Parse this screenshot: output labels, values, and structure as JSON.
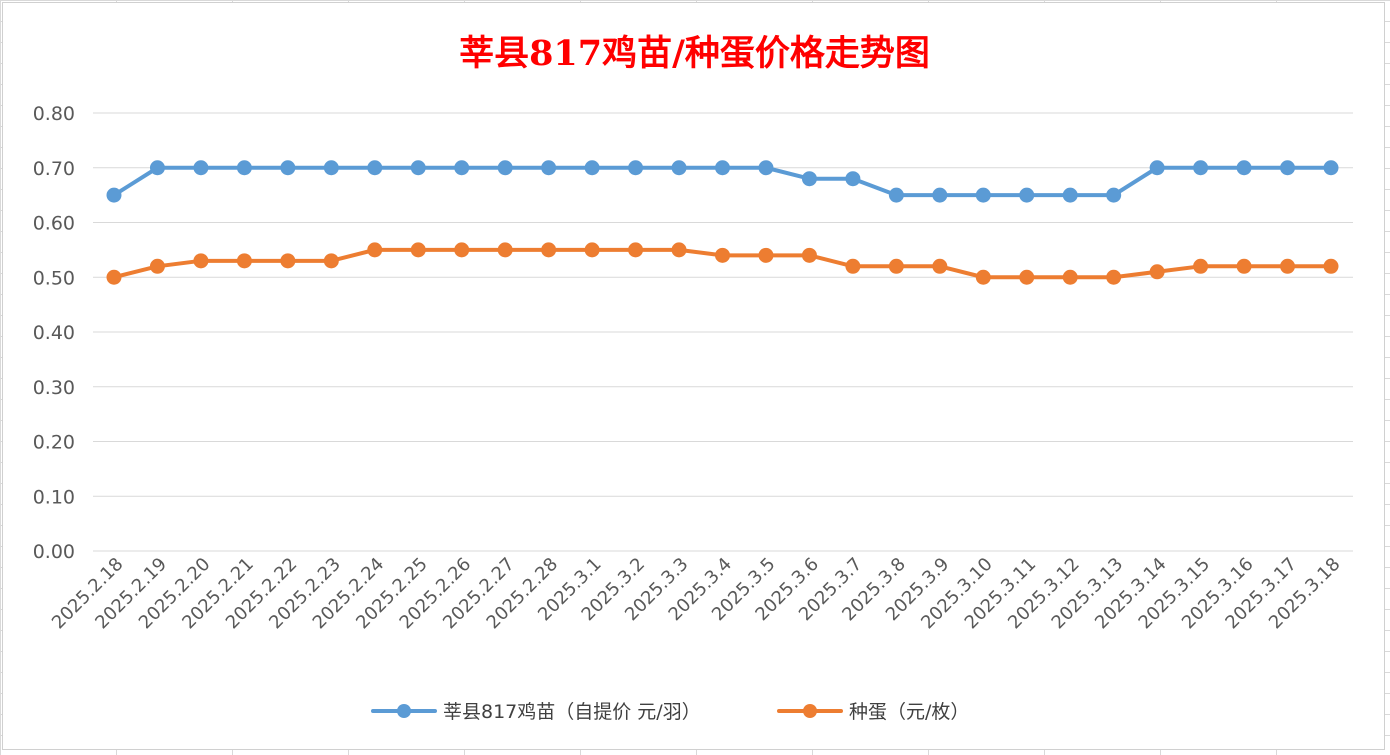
{
  "chart_data": {
    "type": "line",
    "title": "莘县817鸡苗/种蛋价格走势图",
    "xlabel": "",
    "ylabel": "",
    "ylim": [
      0,
      0.8
    ],
    "yticks": [
      "0.00",
      "0.10",
      "0.20",
      "0.30",
      "0.40",
      "0.50",
      "0.60",
      "0.70",
      "0.80"
    ],
    "grid": true,
    "legend_position": "bottom",
    "categories": [
      "2025.2.18",
      "2025.2.19",
      "2025.2.20",
      "2025.2.21",
      "2025.2.22",
      "2025.2.23",
      "2025.2.24",
      "2025.2.25",
      "2025.2.26",
      "2025.2.27",
      "2025.2.28",
      "2025.3.1",
      "2025.3.2",
      "2025.3.3",
      "2025.3.4",
      "2025.3.5",
      "2025.3.6",
      "2025.3.7",
      "2025.3.8",
      "2025.3.9",
      "2025.3.10",
      "2025.3.11",
      "2025.3.12",
      "2025.3.13",
      "2025.3.14",
      "2025.3.15",
      "2025.3.16",
      "2025.3.17",
      "2025.3.18"
    ],
    "series": [
      {
        "name": "莘县817鸡苗（自提价 元/羽）",
        "color": "#5b9bd5",
        "values": [
          0.65,
          0.7,
          0.7,
          0.7,
          0.7,
          0.7,
          0.7,
          0.7,
          0.7,
          0.7,
          0.7,
          0.7,
          0.7,
          0.7,
          0.7,
          0.7,
          0.68,
          0.68,
          0.65,
          0.65,
          0.65,
          0.65,
          0.65,
          0.65,
          0.7,
          0.7,
          0.7,
          0.7,
          0.7
        ]
      },
      {
        "name": "种蛋（元/枚）",
        "color": "#ed7d31",
        "values": [
          0.5,
          0.52,
          0.53,
          0.53,
          0.53,
          0.53,
          0.55,
          0.55,
          0.55,
          0.55,
          0.55,
          0.55,
          0.55,
          0.55,
          0.54,
          0.54,
          0.54,
          0.52,
          0.52,
          0.52,
          0.5,
          0.5,
          0.5,
          0.5,
          0.51,
          0.52,
          0.52,
          0.52,
          0.52
        ]
      }
    ]
  }
}
